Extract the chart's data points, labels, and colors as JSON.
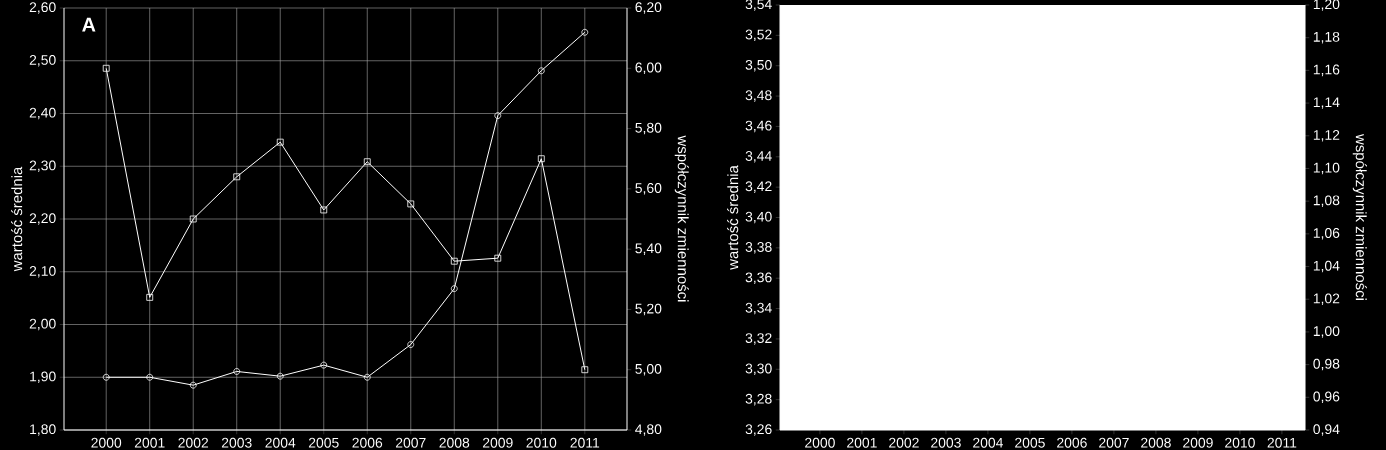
{
  "chart_data": [
    {
      "type": "line",
      "annotations": [
        "A"
      ],
      "ylabel": "wartość średnia",
      "y2label": "współczynnik zmienności",
      "categories": [
        "2000",
        "2001",
        "2002",
        "2003",
        "2004",
        "2005",
        "2006",
        "2007",
        "2008",
        "2009",
        "2010",
        "2011"
      ],
      "ylim": [
        1.8,
        2.6
      ],
      "yticks": [
        {
          "value": 1.8,
          "label": "1,80"
        },
        {
          "value": 1.9,
          "label": "1,90"
        },
        {
          "value": 2.0,
          "label": "2,00"
        },
        {
          "value": 2.1,
          "label": "2,10"
        },
        {
          "value": 2.2,
          "label": "2,20"
        },
        {
          "value": 2.3,
          "label": "2,30"
        },
        {
          "value": 2.4,
          "label": "2,40"
        },
        {
          "value": 2.5,
          "label": "2,50"
        },
        {
          "value": 2.6,
          "label": "2,60"
        }
      ],
      "y2lim": [
        4.8,
        6.2
      ],
      "y2ticks": [
        {
          "value": 4.8,
          "label": "4,80"
        },
        {
          "value": 5.0,
          "label": "5,00"
        },
        {
          "value": 5.2,
          "label": "5,20"
        },
        {
          "value": 5.4,
          "label": "5,40"
        },
        {
          "value": 5.6,
          "label": "5,60"
        },
        {
          "value": 5.8,
          "label": "5,80"
        },
        {
          "value": 6.0,
          "label": "6,00"
        },
        {
          "value": 6.2,
          "label": "6,20"
        }
      ],
      "grid": true,
      "series": [
        {
          "color": "#ffffff",
          "marker": "circle",
          "values": [
            1.9,
            1.9,
            1.885,
            1.911,
            1.902,
            1.923,
            1.9,
            1.962,
            2.068,
            2.396,
            2.481,
            2.554
          ]
        },
        {
          "color": "#ffffff",
          "marker": "square",
          "axis": "y2",
          "values": [
            6.0,
            5.24,
            5.5,
            5.64,
            5.755,
            5.53,
            5.69,
            5.55,
            5.36,
            5.37,
            5.7,
            5.0
          ]
        }
      ]
    },
    {
      "type": "line",
      "ylabel": "wartość średnia",
      "y2label": "współczynnik zmienności",
      "categories": [
        "2000",
        "2001",
        "2002",
        "2003",
        "2004",
        "2005",
        "2006",
        "2007",
        "2008",
        "2009",
        "2010",
        "2011"
      ],
      "ylim": [
        3.26,
        3.54
      ],
      "yticks": [
        {
          "value": 3.26,
          "label": "3,26"
        },
        {
          "value": 3.28,
          "label": "3,28"
        },
        {
          "value": 3.3,
          "label": "3,30"
        },
        {
          "value": 3.32,
          "label": "3,32"
        },
        {
          "value": 3.34,
          "label": "3,34"
        },
        {
          "value": 3.36,
          "label": "3,36"
        },
        {
          "value": 3.38,
          "label": "3,38"
        },
        {
          "value": 3.4,
          "label": "3,40"
        },
        {
          "value": 3.42,
          "label": "3,42"
        },
        {
          "value": 3.44,
          "label": "3,44"
        },
        {
          "value": 3.46,
          "label": "3,46"
        },
        {
          "value": 3.48,
          "label": "3,48"
        },
        {
          "value": 3.5,
          "label": "3,50"
        },
        {
          "value": 3.52,
          "label": "3,52"
        },
        {
          "value": 3.54,
          "label": "3,54"
        }
      ],
      "y2lim": [
        0.94,
        1.2
      ],
      "y2ticks": [
        {
          "value": 0.94,
          "label": "0,94"
        },
        {
          "value": 0.96,
          "label": "0,96"
        },
        {
          "value": 0.98,
          "label": "0,98"
        },
        {
          "value": 1.0,
          "label": "1,00"
        },
        {
          "value": 1.02,
          "label": "1,02"
        },
        {
          "value": 1.04,
          "label": "1,04"
        },
        {
          "value": 1.06,
          "label": "1,06"
        },
        {
          "value": 1.08,
          "label": "1,08"
        },
        {
          "value": 1.1,
          "label": "1,10"
        },
        {
          "value": 1.12,
          "label": "1,12"
        },
        {
          "value": 1.14,
          "label": "1,14"
        },
        {
          "value": 1.16,
          "label": "1,16"
        },
        {
          "value": 1.18,
          "label": "1,18"
        },
        {
          "value": 1.2,
          "label": "1,20"
        }
      ]
    }
  ]
}
